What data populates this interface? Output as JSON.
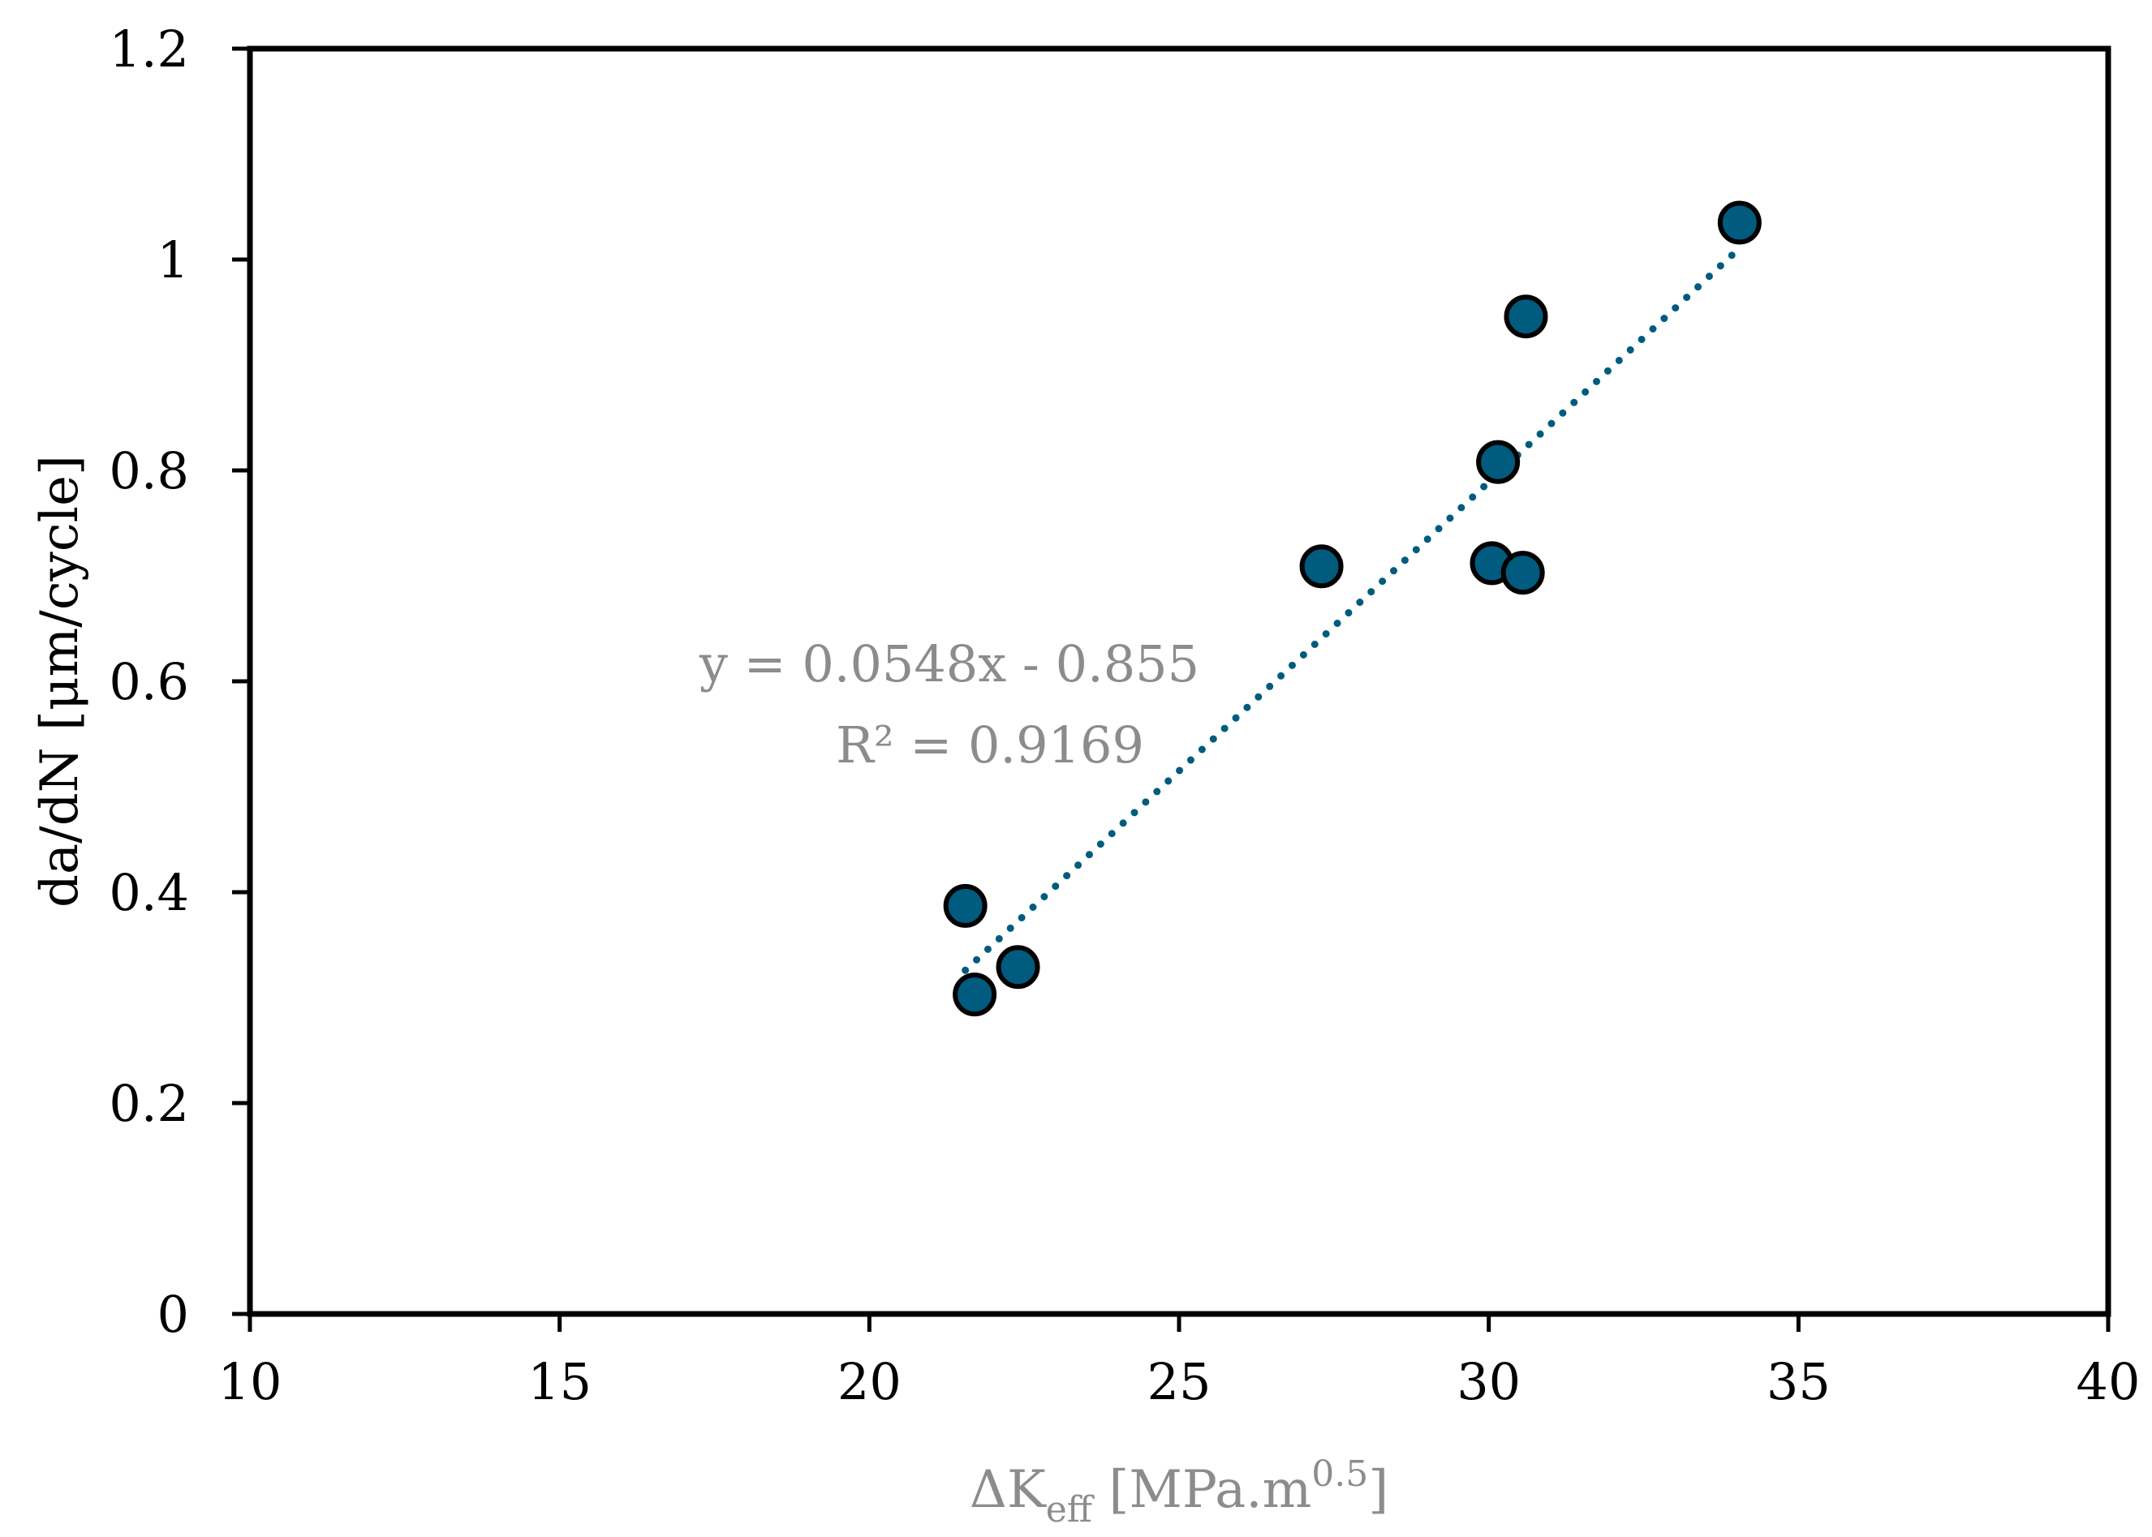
{
  "chart_data": {
    "type": "scatter",
    "title": "",
    "xlabel": {
      "main": "ΔK",
      "subscript": "eff",
      "rest": " [MPa.m",
      "superscript": "0.5",
      "close": "]"
    },
    "ylabel": "da/dN [μm/cycle]",
    "xlim": [
      10,
      40
    ],
    "ylim": [
      0,
      1.2
    ],
    "x_ticks": [
      "10",
      "15",
      "20",
      "25",
      "30",
      "35",
      "40"
    ],
    "y_ticks": [
      "0",
      "0.2",
      "0.4",
      "0.6",
      "0.8",
      "1",
      "1.2"
    ],
    "grid": false,
    "series": [
      {
        "x": [
          21.55,
          21.7,
          22.4,
          27.3,
          30.05,
          30.15,
          30.55,
          30.6,
          34.05
        ],
        "y": [
          0.387,
          0.303,
          0.329,
          0.709,
          0.712,
          0.808,
          0.703,
          0.946,
          1.035
        ],
        "marker_color": "#005b7f",
        "edge_color": "#000000"
      }
    ],
    "trendline": {
      "type": "linear",
      "slope": 0.0548,
      "intercept": -0.855,
      "x_range": [
        21.55,
        34.05
      ],
      "color": "#005b7f",
      "style": "dotted"
    },
    "annotations": {
      "equation": "y = 0.0548x - 0.855",
      "r_squared": "R² = 0.9169"
    }
  }
}
